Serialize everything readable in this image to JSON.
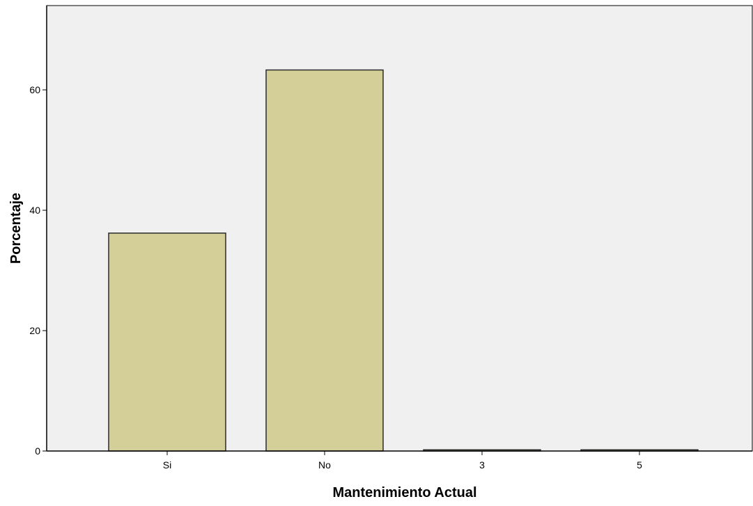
{
  "chart_data": {
    "type": "bar",
    "categories": [
      "Si",
      "No",
      "3",
      "5"
    ],
    "values": [
      36.2,
      63.3,
      0.2,
      0.2
    ],
    "xlabel": "Mantenimiento Actual",
    "ylabel": "Porcentaje",
    "ylim": [
      0,
      74
    ],
    "yticks": [
      0,
      20,
      40,
      60
    ],
    "grid": false,
    "colors": {
      "bar_fill": "#d4cf99",
      "bar_stroke": "#2a2a2a",
      "plot_background": "#f0f0f0",
      "axis": "#000000"
    }
  }
}
